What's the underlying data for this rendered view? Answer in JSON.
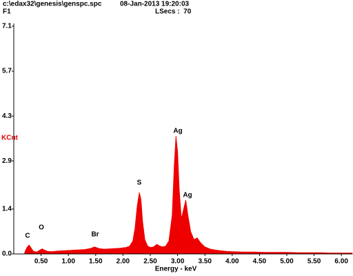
{
  "header": {
    "file": "c:\\edax32\\genesis\\genspc.spc",
    "date": "08-Jan-2013 19:20:03",
    "label": "F1",
    "lsecs": "LSecs :  70"
  },
  "chart_data": {
    "type": "area",
    "xlabel": "Energy - keV",
    "ylabel": "KCnt",
    "color": "#ee0000",
    "x": [
      0.2,
      0.24,
      0.28,
      0.32,
      0.36,
      0.42,
      0.48,
      0.52,
      0.56,
      0.62,
      0.7,
      0.8,
      0.9,
      1.0,
      1.1,
      1.2,
      1.3,
      1.4,
      1.48,
      1.56,
      1.65,
      1.75,
      1.85,
      1.95,
      2.05,
      2.12,
      2.18,
      2.22,
      2.26,
      2.3,
      2.33,
      2.36,
      2.4,
      2.45,
      2.5,
      2.56,
      2.62,
      2.67,
      2.72,
      2.78,
      2.84,
      2.9,
      2.94,
      2.97,
      3.0,
      3.03,
      3.07,
      3.11,
      3.15,
      3.19,
      3.24,
      3.3,
      3.36,
      3.42,
      3.5,
      3.6,
      3.7,
      3.8,
      3.9,
      4.0,
      4.2,
      4.4,
      4.6,
      4.8,
      5.0,
      5.2,
      5.4,
      5.6,
      5.8,
      6.0,
      6.2
    ],
    "values": [
      0.05,
      0.2,
      0.28,
      0.18,
      0.08,
      0.06,
      0.12,
      0.16,
      0.12,
      0.08,
      0.07,
      0.09,
      0.1,
      0.11,
      0.12,
      0.13,
      0.14,
      0.17,
      0.22,
      0.17,
      0.15,
      0.16,
      0.17,
      0.18,
      0.2,
      0.24,
      0.4,
      0.8,
      1.5,
      1.92,
      1.7,
      1.0,
      0.45,
      0.25,
      0.2,
      0.22,
      0.3,
      0.25,
      0.22,
      0.24,
      0.4,
      1.2,
      2.8,
      3.68,
      3.2,
      2.0,
      1.1,
      1.4,
      1.68,
      1.2,
      0.7,
      0.45,
      0.5,
      0.35,
      0.22,
      0.15,
      0.12,
      0.1,
      0.08,
      0.07,
      0.06,
      0.06,
      0.05,
      0.05,
      0.05,
      0.04,
      0.04,
      0.04,
      0.03,
      0.03,
      0.03
    ],
    "xlim": [
      0,
      6.2
    ],
    "ylim": [
      0,
      7.1
    ],
    "xticks": [
      {
        "value": 0.5,
        "label": "0.50"
      },
      {
        "value": 1,
        "label": "1.00"
      },
      {
        "value": 1.5,
        "label": "1.50"
      },
      {
        "value": 2,
        "label": "2.00"
      },
      {
        "value": 2.5,
        "label": "2.50"
      },
      {
        "value": 3,
        "label": "3.00"
      },
      {
        "value": 3.5,
        "label": "3.50"
      },
      {
        "value": 4,
        "label": "4.00"
      },
      {
        "value": 4.5,
        "label": "4.50"
      },
      {
        "value": 5,
        "label": "5.00"
      },
      {
        "value": 5.5,
        "label": "5.50"
      },
      {
        "value": 6,
        "label": "6.00"
      }
    ],
    "yticks": [
      {
        "value": 0,
        "label": "0.0"
      },
      1.4,
      2.9,
      4.3,
      5.7,
      7.1
    ],
    "annotations": [
      "C",
      "O",
      "Br",
      "S",
      "Ag",
      "Ag"
    ]
  }
}
